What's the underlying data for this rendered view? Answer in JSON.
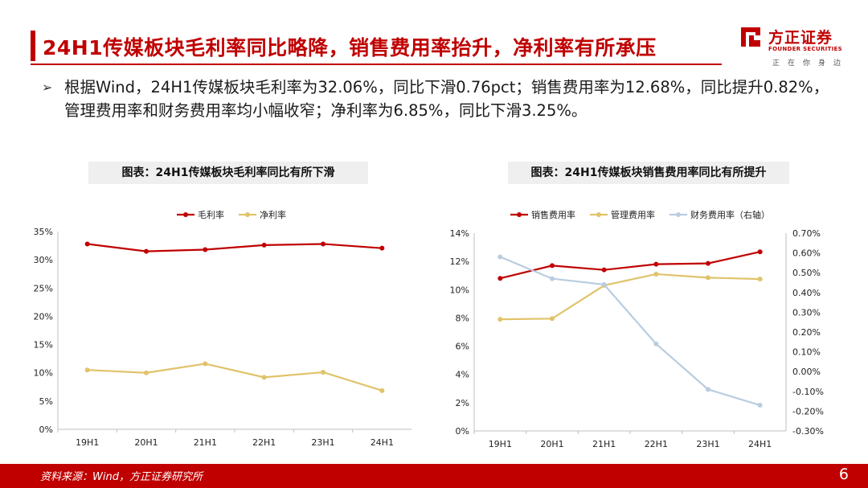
{
  "page": {
    "title": "24H1传媒板块毛利率同比略降，销售费用率抬升，净利率有所承压",
    "bullet": "根据Wind，24H1传媒板块毛利率为32.06%，同比下滑0.76pct；销售费用率为12.68%，同比提升0.82%，管理费用率和财务费用率均小幅收窄；净利率为6.85%，同比下滑3.25%。",
    "source": "资料来源：Wind，方正证券研究所",
    "page_number": "6",
    "brand_color": "#c00000"
  },
  "logo": {
    "name_cn": "方正证券",
    "name_en": "FOUNDER SECURITIES",
    "sub": "正在你身边"
  },
  "chart_data": [
    {
      "type": "line",
      "title": "图表：24H1传媒板块毛利率同比有所下滑",
      "categories": [
        "19H1",
        "20H1",
        "21H1",
        "22H1",
        "23H1",
        "24H1"
      ],
      "ylim": [
        0,
        35
      ],
      "yticks": [
        "0%",
        "5%",
        "10%",
        "15%",
        "20%",
        "25%",
        "30%",
        "35%"
      ],
      "legend_position": "top",
      "grid": false,
      "series": [
        {
          "name": "毛利率",
          "color": "#c00000",
          "values": [
            32.8,
            31.5,
            31.8,
            32.6,
            32.8,
            32.06
          ]
        },
        {
          "name": "净利率",
          "color": "#e0c36a",
          "values": [
            10.5,
            10.0,
            11.6,
            9.2,
            10.1,
            6.85
          ]
        }
      ]
    },
    {
      "type": "line",
      "title": "图表：24H1传媒板块销售费用率同比有所提升",
      "categories": [
        "19H1",
        "20H1",
        "21H1",
        "22H1",
        "23H1",
        "24H1"
      ],
      "ylim": [
        0,
        14
      ],
      "yticks": [
        "0%",
        "2%",
        "4%",
        "6%",
        "8%",
        "10%",
        "12%",
        "14%"
      ],
      "y2lim": [
        -0.3,
        0.7
      ],
      "y2ticks": [
        "-0.30%",
        "-0.20%",
        "-0.10%",
        "0.00%",
        "0.10%",
        "0.20%",
        "0.30%",
        "0.40%",
        "0.50%",
        "0.60%",
        "0.70%"
      ],
      "legend_position": "top",
      "grid": false,
      "series": [
        {
          "name": "销售费用率",
          "color": "#c00000",
          "axis": "left",
          "values": [
            10.8,
            11.7,
            11.4,
            11.8,
            11.86,
            12.68
          ]
        },
        {
          "name": "管理费用率",
          "color": "#e0c36a",
          "axis": "left",
          "values": [
            7.9,
            7.95,
            10.3,
            11.1,
            10.85,
            10.75
          ]
        },
        {
          "name": "财务费用率（右轴）",
          "color": "#b9cde0",
          "axis": "right",
          "values": [
            0.58,
            0.47,
            0.44,
            0.14,
            -0.09,
            -0.17
          ]
        }
      ]
    }
  ]
}
